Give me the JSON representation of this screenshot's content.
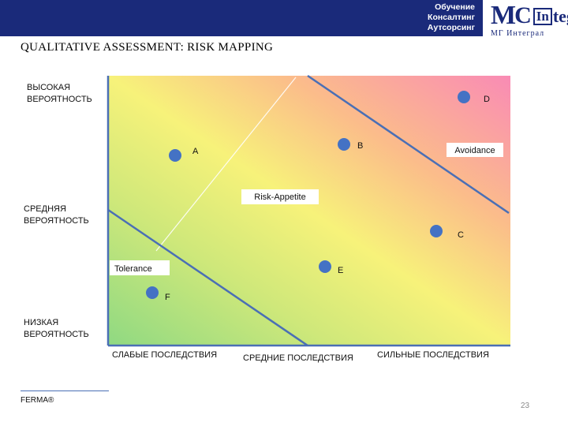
{
  "header": {
    "lines": [
      "Обучение",
      "Консалтинг",
      "Аутсорсинг"
    ]
  },
  "logo": {
    "mark_text": "MCIntegral",
    "subtitle": "МГ Интеграл"
  },
  "slide_title": "QUALITATIVE ASSESSMENT: RISK MAPPING",
  "y_axis_labels": {
    "high": [
      "ВЫСОКАЯ",
      "ВЕРОЯТНОСТЬ"
    ],
    "medium": [
      "СРЕДНЯЯ",
      "ВЕРОЯТНОСТЬ"
    ],
    "low": [
      "НИЗКАЯ",
      "ВЕРОЯТНОСТЬ"
    ]
  },
  "x_axis_labels": {
    "weak": "СЛАБЫЕ ПОСЛЕДСТВИЯ",
    "medium": "СРЕДНИЕ ПОСЛЕДСТВИЯ",
    "strong": "СИЛЬНЫЕ ПОСЛЕДСТВИЯ"
  },
  "zones": {
    "tolerance": "Tolerance",
    "risk_appetite": "Risk-Appetite",
    "avoidance": "Avoidance"
  },
  "risk_points": [
    "A",
    "B",
    "C",
    "D",
    "E",
    "F"
  ],
  "colors": {
    "header": "#1a2a7a",
    "point": "#4472c4",
    "boundary": "#4a6fb5",
    "gradient_low": "#8fd982",
    "gradient_mid": "#f7f27a",
    "gradient_high": "#f98bb5"
  },
  "footer": "FERMA®",
  "page_number": "23"
}
